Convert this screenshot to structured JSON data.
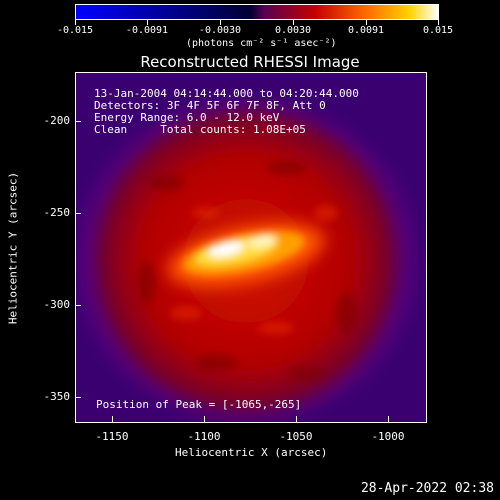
{
  "colorbar": {
    "ticks": [
      "-0.015",
      "-0.0091",
      "-0.0030",
      "0.0030",
      "0.0091",
      "0.015"
    ],
    "units_label": "(photons cm⁻² s⁻¹ asec⁻²)"
  },
  "title": "Reconstructed RHESSI Image",
  "info": {
    "line1": "13-Jan-2004 04:14:44.000 to 04:20:44.000",
    "line2": "Detectors: 3F 4F 5F 6F 7F 8F, Att 0",
    "line3": "Energy Range: 6.0 - 12.0 keV",
    "line4": "Clean     Total counts: 1.08E+05"
  },
  "peak_label": "Position of Peak = [-1065,-265]",
  "x_axis": {
    "label": "Heliocentric X (arcsec)",
    "ticks": [
      "-1150",
      "-1100",
      "-1050",
      "-1000"
    ]
  },
  "y_axis": {
    "label": "Heliocentric Y (arcsec)",
    "ticks": [
      "-200",
      "-250",
      "-300",
      "-350"
    ]
  },
  "timestamp": "28-Apr-2022 02:38",
  "colors": {
    "background": "#000000",
    "outer_flux": "#400078",
    "disk": "#c40000",
    "peak": "#ffffff"
  },
  "chart_data": {
    "type": "heatmap",
    "title": "Reconstructed RHESSI Image",
    "xlabel": "Heliocentric X (arcsec)",
    "ylabel": "Heliocentric Y (arcsec)",
    "xlim": [
      -1165,
      -975
    ],
    "ylim": [
      -365,
      -175
    ],
    "colorbar_range": [
      -0.015,
      0.015
    ],
    "peak": [
      -1065,
      -265
    ]
  }
}
